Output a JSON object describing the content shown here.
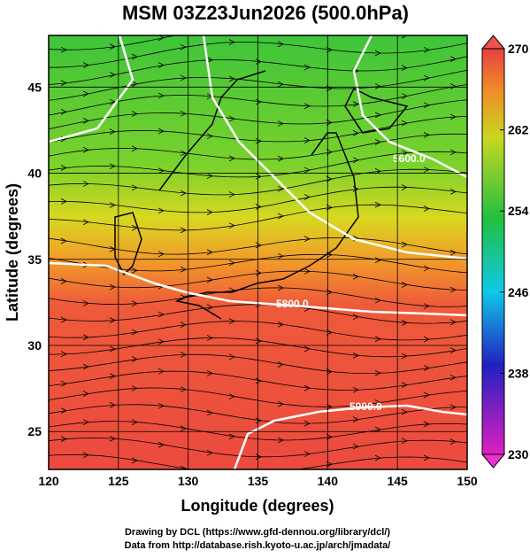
{
  "title": "MSM 03Z23Jun2026 (500.0hPa)",
  "x_label": "Longitude (degrees)",
  "y_label": "Latitude  (degrees)",
  "xlim": [
    120,
    150
  ],
  "ylim": [
    22.8,
    48.0
  ],
  "xticks": [
    120,
    125,
    130,
    135,
    140,
    145,
    150
  ],
  "yticks": [
    25,
    30,
    35,
    40,
    45
  ],
  "colorbar": {
    "lim": [
      230,
      270
    ],
    "ticks": [
      230,
      238,
      246,
      254,
      262,
      270
    ]
  },
  "contours": [
    {
      "value": 5600,
      "label": "5600.0"
    },
    {
      "value": 5800,
      "label": "5800.0"
    },
    {
      "value": 5900,
      "label": "5900.0"
    }
  ],
  "footer": [
    "Drawing by DCL (https://www.gfd-dennou.org/library/dcl/)",
    "Data from http://database.rish.kyoto-u.ac.jp/arch/jmadata/"
  ]
}
